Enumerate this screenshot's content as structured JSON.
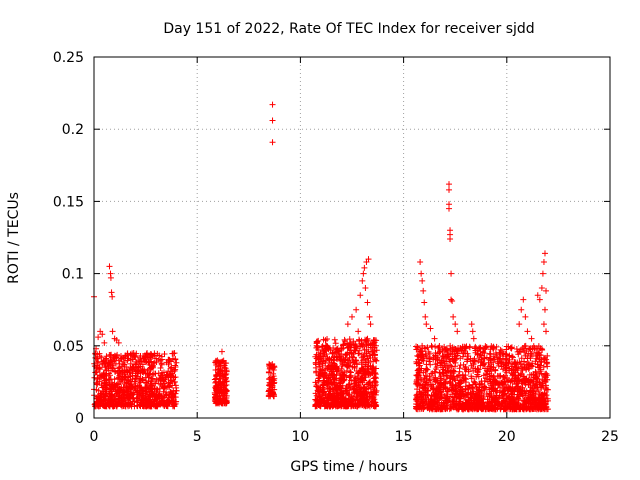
{
  "chart_data": {
    "type": "scatter",
    "title": "Day 151 of 2022, Rate Of TEC Index for receiver sjdd",
    "xlabel": "GPS time / hours",
    "ylabel": "ROTI / TECUs",
    "xlim": [
      0,
      25
    ],
    "ylim": [
      0,
      0.25
    ],
    "x_ticks": [
      "0",
      "5",
      "10",
      "15",
      "20",
      "25"
    ],
    "y_ticks": [
      "0",
      "0.05",
      "0.1",
      "0.15",
      "0.2",
      "0.25"
    ],
    "grid": true,
    "marker": "plus",
    "color": "#ff0000",
    "series": [
      {
        "name": "ROTI",
        "clusters": [
          {
            "x_range": [
              0.0,
              4.0
            ],
            "y_range": [
              0.008,
              0.045
            ],
            "density": 900
          },
          {
            "x_range": [
              5.85,
              6.45
            ],
            "y_range": [
              0.01,
              0.04
            ],
            "density": 200
          },
          {
            "x_range": [
              8.45,
              8.75
            ],
            "y_range": [
              0.015,
              0.038
            ],
            "density": 70
          },
          {
            "x_range": [
              10.7,
              13.7
            ],
            "y_range": [
              0.008,
              0.055
            ],
            "density": 900
          },
          {
            "x_range": [
              15.6,
              22.0
            ],
            "y_range": [
              0.006,
              0.05
            ],
            "density": 1600
          }
        ],
        "points": [
          {
            "x": 0.0,
            "y": 0.084
          },
          {
            "x": 0.1,
            "y": 0.048
          },
          {
            "x": 0.2,
            "y": 0.056
          },
          {
            "x": 0.3,
            "y": 0.06
          },
          {
            "x": 0.4,
            "y": 0.058
          },
          {
            "x": 0.5,
            "y": 0.052
          },
          {
            "x": 0.75,
            "y": 0.105
          },
          {
            "x": 0.8,
            "y": 0.1
          },
          {
            "x": 0.82,
            "y": 0.097
          },
          {
            "x": 0.85,
            "y": 0.087
          },
          {
            "x": 0.88,
            "y": 0.084
          },
          {
            "x": 0.9,
            "y": 0.06
          },
          {
            "x": 1.0,
            "y": 0.055
          },
          {
            "x": 1.1,
            "y": 0.054
          },
          {
            "x": 1.2,
            "y": 0.052
          },
          {
            "x": 8.65,
            "y": 0.217
          },
          {
            "x": 8.65,
            "y": 0.206
          },
          {
            "x": 8.65,
            "y": 0.191
          },
          {
            "x": 12.3,
            "y": 0.065
          },
          {
            "x": 12.5,
            "y": 0.07
          },
          {
            "x": 12.7,
            "y": 0.075
          },
          {
            "x": 12.9,
            "y": 0.085
          },
          {
            "x": 13.0,
            "y": 0.095
          },
          {
            "x": 13.05,
            "y": 0.1
          },
          {
            "x": 13.1,
            "y": 0.104
          },
          {
            "x": 13.2,
            "y": 0.108
          },
          {
            "x": 13.3,
            "y": 0.11
          },
          {
            "x": 13.15,
            "y": 0.09
          },
          {
            "x": 13.25,
            "y": 0.08
          },
          {
            "x": 13.35,
            "y": 0.07
          },
          {
            "x": 12.8,
            "y": 0.06
          },
          {
            "x": 13.4,
            "y": 0.065
          },
          {
            "x": 15.8,
            "y": 0.108
          },
          {
            "x": 15.85,
            "y": 0.1
          },
          {
            "x": 15.9,
            "y": 0.095
          },
          {
            "x": 15.95,
            "y": 0.088
          },
          {
            "x": 16.0,
            "y": 0.08
          },
          {
            "x": 16.05,
            "y": 0.07
          },
          {
            "x": 16.1,
            "y": 0.065
          },
          {
            "x": 16.3,
            "y": 0.062
          },
          {
            "x": 16.5,
            "y": 0.055
          },
          {
            "x": 17.2,
            "y": 0.162
          },
          {
            "x": 17.2,
            "y": 0.158
          },
          {
            "x": 17.2,
            "y": 0.148
          },
          {
            "x": 17.2,
            "y": 0.145
          },
          {
            "x": 17.25,
            "y": 0.13
          },
          {
            "x": 17.25,
            "y": 0.127
          },
          {
            "x": 17.25,
            "y": 0.124
          },
          {
            "x": 17.3,
            "y": 0.1
          },
          {
            "x": 17.3,
            "y": 0.082
          },
          {
            "x": 17.35,
            "y": 0.081
          },
          {
            "x": 17.4,
            "y": 0.07
          },
          {
            "x": 17.5,
            "y": 0.065
          },
          {
            "x": 17.6,
            "y": 0.06
          },
          {
            "x": 18.3,
            "y": 0.065
          },
          {
            "x": 18.35,
            "y": 0.06
          },
          {
            "x": 18.4,
            "y": 0.055
          },
          {
            "x": 20.6,
            "y": 0.065
          },
          {
            "x": 20.7,
            "y": 0.075
          },
          {
            "x": 20.8,
            "y": 0.082
          },
          {
            "x": 20.9,
            "y": 0.07
          },
          {
            "x": 21.0,
            "y": 0.06
          },
          {
            "x": 21.2,
            "y": 0.055
          },
          {
            "x": 21.5,
            "y": 0.085
          },
          {
            "x": 21.6,
            "y": 0.082
          },
          {
            "x": 21.7,
            "y": 0.09
          },
          {
            "x": 21.75,
            "y": 0.1
          },
          {
            "x": 21.8,
            "y": 0.108
          },
          {
            "x": 21.85,
            "y": 0.114
          },
          {
            "x": 21.9,
            "y": 0.088
          },
          {
            "x": 21.85,
            "y": 0.075
          },
          {
            "x": 21.8,
            "y": 0.065
          },
          {
            "x": 21.9,
            "y": 0.06
          },
          {
            "x": 6.2,
            "y": 0.046
          }
        ]
      }
    ]
  }
}
